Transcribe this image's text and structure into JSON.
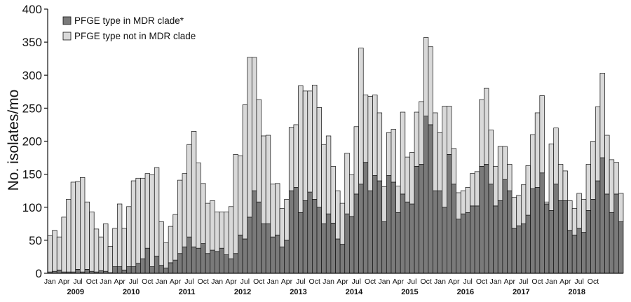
{
  "colors": {
    "mdr": "#7a7a7a",
    "non_mdr": "#d9d9d9",
    "stroke": "#111111"
  },
  "chart_data": {
    "type": "bar",
    "stacked": true,
    "title": "",
    "xlabel": "",
    "ylabel": "No. isolates/mo",
    "ylim": [
      0,
      400
    ],
    "yticks": [
      0,
      50,
      100,
      150,
      200,
      250,
      300,
      350,
      400
    ],
    "grid": false,
    "legend_position": "top-left",
    "month_tick_labels": [
      "Jan",
      "Apr",
      "Jul",
      "Oct"
    ],
    "years": [
      "2009",
      "2010",
      "2011",
      "2012",
      "2013",
      "2014",
      "2015",
      "2016",
      "2017",
      "2018"
    ],
    "series": [
      {
        "name": "PFGE type in MDR clade*",
        "color_key": "mdr",
        "values": [
          2,
          3,
          5,
          2,
          2,
          2,
          6,
          2,
          6,
          3,
          2,
          4,
          3,
          1,
          10,
          10,
          5,
          10,
          10,
          15,
          22,
          38,
          10,
          26,
          12,
          8,
          16,
          20,
          30,
          40,
          55,
          40,
          38,
          45,
          30,
          35,
          33,
          38,
          28,
          22,
          30,
          58,
          52,
          85,
          125,
          108,
          75,
          75,
          55,
          58,
          40,
          50,
          125,
          130,
          92,
          110,
          123,
          112,
          100,
          75,
          90,
          76,
          52,
          44,
          90,
          86,
          120,
          135,
          168,
          125,
          148,
          140,
          78,
          148,
          138,
          92,
          120,
          108,
          105,
          162,
          165,
          238,
          225,
          125,
          125,
          100,
          180,
          135,
          82,
          90,
          92,
          102,
          102,
          162,
          165,
          135,
          102,
          110,
          142,
          125,
          68,
          72,
          75,
          88,
          128,
          130,
          152,
          105,
          95,
          135,
          110,
          110,
          65,
          58,
          68,
          62,
          95,
          112,
          140,
          175,
          120,
          92,
          120,
          78
        ]
      },
      {
        "name": "PFGE type not in MDR clade",
        "color_key": "non_mdr",
        "values": [
          55,
          62,
          50,
          83,
          110,
          136,
          133,
          143,
          102,
          90,
          65,
          51,
          72,
          40,
          58,
          95,
          63,
          91,
          130,
          129,
          122,
          113,
          139,
          134,
          66,
          38,
          55,
          69,
          111,
          111,
          140,
          175,
          129,
          91,
          76,
          75,
          60,
          55,
          65,
          79,
          150,
          120,
          203,
          242,
          202,
          155,
          133,
          134,
          80,
          78,
          58,
          62,
          96,
          95,
          192,
          166,
          153,
          173,
          151,
          120,
          118,
          86,
          73,
          62,
          92,
          63,
          102,
          206,
          102,
          143,
          122,
          103,
          53,
          65,
          80,
          40,
          124,
          68,
          78,
          82,
          95,
          119,
          118,
          118,
          88,
          153,
          73,
          54,
          40,
          35,
          38,
          49,
          52,
          101,
          115,
          82,
          60,
          82,
          50,
          40,
          47,
          46,
          59,
          75,
          82,
          113,
          117,
          3,
          101,
          85,
          55,
          45,
          45,
          40,
          53,
          50,
          70,
          88,
          112,
          128,
          89,
          80,
          48,
          43
        ]
      }
    ]
  }
}
